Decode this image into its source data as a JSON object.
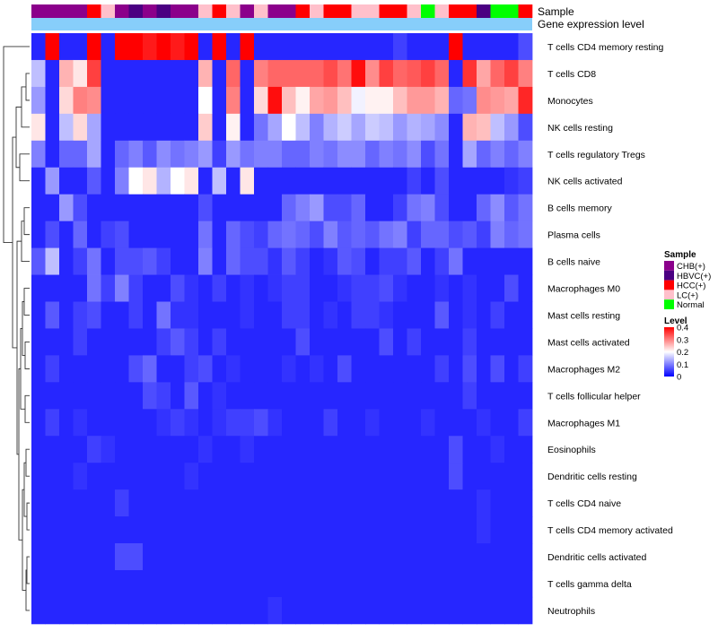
{
  "chart_data": {
    "type": "heatmap",
    "annotation_tracks": [
      "Sample",
      "Gene expression level"
    ],
    "sample_groups": [
      "CHB(+)",
      "CHB(+)",
      "CHB(+)",
      "CHB(+)",
      "HCC(+)",
      "LC(+)",
      "CHB(+)",
      "HBVC(+)",
      "CHB(+)",
      "HBVC(+)",
      "CHB(+)",
      "CHB(+)",
      "LC(+)",
      "HCC(+)",
      "LC(+)",
      "CHB(+)",
      "LC(+)",
      "CHB(+)",
      "CHB(+)",
      "HCC(+)",
      "LC(+)",
      "HCC(+)",
      "HCC(+)",
      "LC(+)",
      "LC(+)",
      "HCC(+)",
      "HCC(+)",
      "LC(+)",
      "Normal",
      "LC(+)",
      "HCC(+)",
      "HCC(+)",
      "HBVC(+)",
      "Normal",
      "Normal",
      "HCC(+)"
    ],
    "rows": [
      "T cells CD4 memory resting",
      "T cells CD8",
      "Monocytes",
      "NK cells resting",
      "T cells regulatory  Tregs",
      "NK cells activated",
      "B cells memory",
      "Plasma cells",
      "B cells naive",
      "Macrophages M0",
      "Mast cells resting",
      "Mast cells activated",
      "Macrophages M2",
      "T cells follicular helper",
      "Macrophages M1",
      "Eosinophils",
      "Dendritic cells resting",
      "T cells CD4 naive",
      "T cells CD4 memory activated",
      "Dendritic cells activated",
      "T cells gamma delta",
      "Neutrophils"
    ],
    "values": [
      [
        0.03,
        0.4,
        0.03,
        0.03,
        0.4,
        0.03,
        0.4,
        0.4,
        0.38,
        0.4,
        0.38,
        0.4,
        0.03,
        0.4,
        0.03,
        0.4,
        0.03,
        0.03,
        0.03,
        0.03,
        0.03,
        0.03,
        0.03,
        0.03,
        0.03,
        0.03,
        0.05,
        0.03,
        0.03,
        0.03,
        0.4,
        0.03,
        0.03,
        0.03,
        0.03,
        0.06
      ],
      [
        0.15,
        0.03,
        0.26,
        0.22,
        0.35,
        0.03,
        0.03,
        0.03,
        0.03,
        0.03,
        0.03,
        0.03,
        0.26,
        0.03,
        0.32,
        0.03,
        0.3,
        0.32,
        0.32,
        0.32,
        0.32,
        0.34,
        0.31,
        0.39,
        0.29,
        0.35,
        0.32,
        0.33,
        0.35,
        0.32,
        0.03,
        0.36,
        0.27,
        0.32,
        0.35,
        0.3
      ],
      [
        0.12,
        0.03,
        0.23,
        0.3,
        0.29,
        0.03,
        0.03,
        0.03,
        0.03,
        0.03,
        0.03,
        0.03,
        0.2,
        0.03,
        0.3,
        0.03,
        0.23,
        0.39,
        0.25,
        0.21,
        0.27,
        0.28,
        0.25,
        0.19,
        0.21,
        0.21,
        0.25,
        0.28,
        0.28,
        0.26,
        0.08,
        0.09,
        0.29,
        0.28,
        0.27,
        0.37
      ],
      [
        0.22,
        0.03,
        0.15,
        0.23,
        0.13,
        0.03,
        0.03,
        0.03,
        0.03,
        0.03,
        0.03,
        0.03,
        0.24,
        0.03,
        0.21,
        0.03,
        0.09,
        0.13,
        0.2,
        0.15,
        0.1,
        0.14,
        0.16,
        0.13,
        0.16,
        0.15,
        0.12,
        0.14,
        0.13,
        0.11,
        0.03,
        0.26,
        0.25,
        0.15,
        0.12,
        0.06
      ],
      [
        0.1,
        0.03,
        0.08,
        0.08,
        0.13,
        0.03,
        0.08,
        0.1,
        0.07,
        0.11,
        0.09,
        0.1,
        0.12,
        0.05,
        0.12,
        0.09,
        0.1,
        0.1,
        0.08,
        0.08,
        0.1,
        0.09,
        0.11,
        0.11,
        0.08,
        0.1,
        0.09,
        0.11,
        0.06,
        0.09,
        0.03,
        0.13,
        0.08,
        0.1,
        0.08,
        0.1
      ],
      [
        0.03,
        0.12,
        0.03,
        0.03,
        0.07,
        0.03,
        0.1,
        0.2,
        0.22,
        0.14,
        0.2,
        0.22,
        0.03,
        0.15,
        0.03,
        0.22,
        0.03,
        0.03,
        0.03,
        0.03,
        0.03,
        0.03,
        0.03,
        0.03,
        0.03,
        0.03,
        0.03,
        0.05,
        0.03,
        0.06,
        0.03,
        0.03,
        0.03,
        0.03,
        0.04,
        0.05
      ],
      [
        0.03,
        0.03,
        0.12,
        0.06,
        0.03,
        0.03,
        0.03,
        0.03,
        0.03,
        0.03,
        0.03,
        0.03,
        0.06,
        0.03,
        0.03,
        0.03,
        0.03,
        0.03,
        0.08,
        0.1,
        0.12,
        0.06,
        0.06,
        0.08,
        0.03,
        0.03,
        0.05,
        0.09,
        0.1,
        0.06,
        0.03,
        0.03,
        0.08,
        0.11,
        0.07,
        0.09
      ],
      [
        0.03,
        0.06,
        0.03,
        0.08,
        0.03,
        0.05,
        0.06,
        0.03,
        0.03,
        0.03,
        0.03,
        0.03,
        0.09,
        0.03,
        0.08,
        0.06,
        0.05,
        0.08,
        0.09,
        0.08,
        0.06,
        0.1,
        0.07,
        0.08,
        0.07,
        0.09,
        0.1,
        0.05,
        0.08,
        0.08,
        0.06,
        0.07,
        0.05,
        0.1,
        0.08,
        0.09
      ],
      [
        0.07,
        0.15,
        0.03,
        0.05,
        0.09,
        0.03,
        0.06,
        0.06,
        0.07,
        0.05,
        0.03,
        0.03,
        0.1,
        0.03,
        0.08,
        0.06,
        0.06,
        0.04,
        0.07,
        0.05,
        0.03,
        0.04,
        0.07,
        0.06,
        0.03,
        0.05,
        0.05,
        0.07,
        0.03,
        0.05,
        0.09,
        0.03,
        0.03,
        0.03,
        0.03,
        0.03
      ],
      [
        0.03,
        0.03,
        0.03,
        0.03,
        0.09,
        0.05,
        0.1,
        0.05,
        0.03,
        0.03,
        0.06,
        0.04,
        0.03,
        0.05,
        0.03,
        0.04,
        0.03,
        0.04,
        0.05,
        0.05,
        0.03,
        0.03,
        0.04,
        0.05,
        0.05,
        0.06,
        0.04,
        0.03,
        0.03,
        0.04,
        0.03,
        0.04,
        0.03,
        0.03,
        0.06,
        0.03
      ],
      [
        0.03,
        0.07,
        0.03,
        0.05,
        0.06,
        0.03,
        0.03,
        0.05,
        0.03,
        0.09,
        0.04,
        0.04,
        0.03,
        0.03,
        0.03,
        0.04,
        0.03,
        0.03,
        0.05,
        0.05,
        0.03,
        0.04,
        0.03,
        0.05,
        0.05,
        0.04,
        0.03,
        0.03,
        0.03,
        0.07,
        0.03,
        0.04,
        0.03,
        0.05,
        0.03,
        0.03
      ],
      [
        0.03,
        0.03,
        0.03,
        0.05,
        0.03,
        0.03,
        0.03,
        0.03,
        0.03,
        0.05,
        0.07,
        0.05,
        0.03,
        0.05,
        0.03,
        0.03,
        0.03,
        0.03,
        0.03,
        0.06,
        0.03,
        0.03,
        0.03,
        0.03,
        0.03,
        0.06,
        0.03,
        0.05,
        0.03,
        0.03,
        0.03,
        0.05,
        0.03,
        0.03,
        0.03,
        0.03
      ],
      [
        0.03,
        0.05,
        0.03,
        0.03,
        0.03,
        0.03,
        0.03,
        0.06,
        0.08,
        0.03,
        0.03,
        0.05,
        0.06,
        0.03,
        0.04,
        0.03,
        0.03,
        0.03,
        0.04,
        0.03,
        0.04,
        0.03,
        0.06,
        0.03,
        0.03,
        0.03,
        0.03,
        0.03,
        0.03,
        0.05,
        0.03,
        0.06,
        0.03,
        0.06,
        0.03,
        0.05
      ],
      [
        0.03,
        0.03,
        0.03,
        0.03,
        0.03,
        0.03,
        0.03,
        0.03,
        0.06,
        0.05,
        0.03,
        0.07,
        0.03,
        0.04,
        0.03,
        0.03,
        0.03,
        0.03,
        0.03,
        0.03,
        0.03,
        0.03,
        0.03,
        0.03,
        0.03,
        0.03,
        0.03,
        0.03,
        0.03,
        0.03,
        0.03,
        0.05,
        0.03,
        0.03,
        0.03,
        0.03
      ],
      [
        0.03,
        0.05,
        0.03,
        0.04,
        0.03,
        0.03,
        0.03,
        0.03,
        0.03,
        0.04,
        0.05,
        0.04,
        0.03,
        0.04,
        0.05,
        0.05,
        0.06,
        0.04,
        0.03,
        0.03,
        0.03,
        0.05,
        0.03,
        0.03,
        0.04,
        0.03,
        0.03,
        0.03,
        0.04,
        0.03,
        0.03,
        0.03,
        0.04,
        0.03,
        0.03,
        0.05
      ],
      [
        0.03,
        0.03,
        0.03,
        0.03,
        0.05,
        0.04,
        0.03,
        0.03,
        0.03,
        0.03,
        0.03,
        0.03,
        0.04,
        0.03,
        0.03,
        0.04,
        0.03,
        0.03,
        0.03,
        0.03,
        0.03,
        0.03,
        0.03,
        0.03,
        0.03,
        0.03,
        0.03,
        0.03,
        0.03,
        0.03,
        0.06,
        0.03,
        0.03,
        0.04,
        0.03,
        0.03
      ],
      [
        0.03,
        0.03,
        0.03,
        0.04,
        0.03,
        0.03,
        0.03,
        0.03,
        0.03,
        0.03,
        0.03,
        0.04,
        0.03,
        0.03,
        0.03,
        0.03,
        0.03,
        0.03,
        0.03,
        0.03,
        0.03,
        0.03,
        0.03,
        0.03,
        0.03,
        0.03,
        0.03,
        0.03,
        0.03,
        0.03,
        0.06,
        0.03,
        0.03,
        0.03,
        0.03,
        0.03
      ],
      [
        0.03,
        0.03,
        0.03,
        0.03,
        0.03,
        0.03,
        0.05,
        0.03,
        0.03,
        0.03,
        0.03,
        0.03,
        0.03,
        0.03,
        0.03,
        0.03,
        0.03,
        0.03,
        0.03,
        0.03,
        0.03,
        0.03,
        0.03,
        0.03,
        0.03,
        0.03,
        0.03,
        0.03,
        0.03,
        0.03,
        0.03,
        0.03,
        0.04,
        0.03,
        0.03,
        0.03
      ],
      [
        0.03,
        0.03,
        0.03,
        0.03,
        0.03,
        0.03,
        0.03,
        0.03,
        0.03,
        0.03,
        0.03,
        0.03,
        0.03,
        0.03,
        0.03,
        0.03,
        0.03,
        0.03,
        0.03,
        0.03,
        0.03,
        0.03,
        0.03,
        0.03,
        0.03,
        0.03,
        0.03,
        0.03,
        0.03,
        0.03,
        0.03,
        0.03,
        0.04,
        0.03,
        0.03,
        0.03
      ],
      [
        0.03,
        0.03,
        0.03,
        0.03,
        0.03,
        0.03,
        0.06,
        0.06,
        0.03,
        0.03,
        0.03,
        0.03,
        0.03,
        0.03,
        0.03,
        0.03,
        0.03,
        0.03,
        0.03,
        0.03,
        0.03,
        0.03,
        0.03,
        0.03,
        0.03,
        0.03,
        0.03,
        0.03,
        0.03,
        0.03,
        0.03,
        0.03,
        0.03,
        0.03,
        0.03,
        0.03
      ],
      [
        0.03,
        0.03,
        0.03,
        0.03,
        0.03,
        0.03,
        0.03,
        0.03,
        0.03,
        0.03,
        0.03,
        0.03,
        0.03,
        0.03,
        0.03,
        0.03,
        0.03,
        0.03,
        0.03,
        0.03,
        0.03,
        0.03,
        0.03,
        0.03,
        0.03,
        0.03,
        0.03,
        0.03,
        0.03,
        0.03,
        0.03,
        0.03,
        0.03,
        0.03,
        0.03,
        0.03
      ],
      [
        0.03,
        0.03,
        0.03,
        0.03,
        0.03,
        0.03,
        0.03,
        0.03,
        0.03,
        0.03,
        0.03,
        0.03,
        0.03,
        0.03,
        0.03,
        0.03,
        0.03,
        0.04,
        0.03,
        0.03,
        0.03,
        0.03,
        0.03,
        0.03,
        0.03,
        0.03,
        0.03,
        0.03,
        0.03,
        0.03,
        0.03,
        0.03,
        0.03,
        0.03,
        0.03,
        0.03
      ]
    ],
    "legend_sample": {
      "title": "Sample",
      "items": [
        {
          "label": "CHB(+)",
          "color": "#8b008b"
        },
        {
          "label": "HBVC(+)",
          "color": "#4b0082"
        },
        {
          "label": "HCC(+)",
          "color": "#ff0000"
        },
        {
          "label": "LC(+)",
          "color": "#ffc0cb"
        },
        {
          "label": "Normal",
          "color": "#00ff00"
        }
      ]
    },
    "legend_level": {
      "title": "Level",
      "ticks": [
        "0.4",
        "0.3",
        "0.2",
        "0.1",
        "0"
      ],
      "range": [
        0,
        0.4
      ]
    },
    "color_scale": {
      "low": "#0000ff",
      "mid": "#ffffff",
      "high": "#ff0000",
      "min": 0,
      "mid_value": 0.2,
      "max": 0.4
    },
    "expression_bar_color": "#87cefa"
  }
}
